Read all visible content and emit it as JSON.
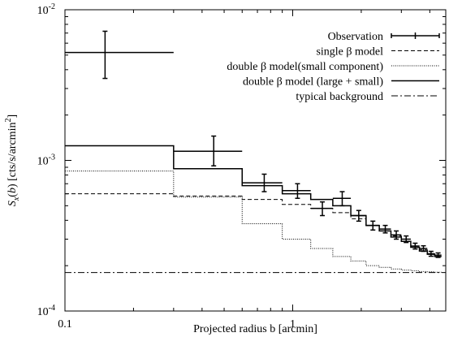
{
  "chart_data": {
    "type": "line",
    "title": "",
    "xlabel": "Projected radius b [arcmin]",
    "ylabel": "S_x(b) [cts/s/arcmin^2]",
    "xscale": "log",
    "yscale": "log",
    "xlim": [
      0.1,
      4.7
    ],
    "ylim": [
      0.0001,
      0.01
    ],
    "grid": false,
    "legend_position": "top-right",
    "x_tick_labels": [
      {
        "value": 0.1,
        "label": "0.1"
      },
      {
        "value": 1,
        "label": "1"
      }
    ],
    "y_tick_labels": [
      {
        "value": 0.0001,
        "label": "10",
        "exp": "-4"
      },
      {
        "value": 0.001,
        "label": "10",
        "exp": "-3"
      },
      {
        "value": 0.01,
        "label": "10",
        "exp": "-2"
      }
    ],
    "series": [
      {
        "name": "Observation",
        "kind": "errorbar",
        "points": [
          {
            "x": 0.15,
            "x_lo": 0.0,
            "x_hi": 0.3,
            "y": 0.0052,
            "y_lo": 0.0035,
            "y_hi": 0.0072
          },
          {
            "x": 0.45,
            "x_lo": 0.3,
            "x_hi": 0.6,
            "y": 0.00115,
            "y_lo": 0.00092,
            "y_hi": 0.00145
          },
          {
            "x": 0.75,
            "x_lo": 0.6,
            "x_hi": 0.9,
            "y": 0.00071,
            "y_lo": 0.00062,
            "y_hi": 0.00081
          },
          {
            "x": 1.05,
            "x_lo": 0.9,
            "x_hi": 1.2,
            "y": 0.00063,
            "y_lo": 0.00056,
            "y_hi": 0.0007
          },
          {
            "x": 1.35,
            "x_lo": 1.2,
            "x_hi": 1.5,
            "y": 0.00048,
            "y_lo": 0.00043,
            "y_hi": 0.00053
          },
          {
            "x": 1.65,
            "x_lo": 1.5,
            "x_hi": 1.8,
            "y": 0.00056,
            "y_lo": 0.0005,
            "y_hi": 0.00062
          },
          {
            "x": 1.95,
            "x_lo": 1.8,
            "x_hi": 2.1,
            "y": 0.00043,
            "y_lo": 0.000395,
            "y_hi": 0.000465
          },
          {
            "x": 2.25,
            "x_lo": 2.1,
            "x_hi": 2.4,
            "y": 0.00037,
            "y_lo": 0.000345,
            "y_hi": 0.000395
          },
          {
            "x": 2.55,
            "x_lo": 2.4,
            "x_hi": 2.7,
            "y": 0.00035,
            "y_lo": 0.00033,
            "y_hi": 0.00037
          },
          {
            "x": 2.85,
            "x_lo": 2.7,
            "x_hi": 3.0,
            "y": 0.00032,
            "y_lo": 0.0003,
            "y_hi": 0.00034
          },
          {
            "x": 3.15,
            "x_lo": 3.0,
            "x_hi": 3.3,
            "y": 0.0003,
            "y_lo": 0.000285,
            "y_hi": 0.000315
          },
          {
            "x": 3.45,
            "x_lo": 3.3,
            "x_hi": 3.6,
            "y": 0.00027,
            "y_lo": 0.000258,
            "y_hi": 0.000282
          },
          {
            "x": 3.75,
            "x_lo": 3.6,
            "x_hi": 3.9,
            "y": 0.00026,
            "y_lo": 0.000249,
            "y_hi": 0.000271
          },
          {
            "x": 4.05,
            "x_lo": 3.9,
            "x_hi": 4.2,
            "y": 0.00024,
            "y_lo": 0.000231,
            "y_hi": 0.000249
          },
          {
            "x": 4.35,
            "x_lo": 4.2,
            "x_hi": 4.5,
            "y": 0.000235,
            "y_lo": 0.000227,
            "y_hi": 0.000243
          }
        ]
      },
      {
        "name": "single β model",
        "kind": "step",
        "dash": "5,3",
        "edges": [
          0.1,
          0.3,
          0.6,
          0.9,
          1.2,
          1.5,
          1.8,
          2.1,
          2.4,
          2.7,
          3.0,
          3.3,
          3.6,
          3.9,
          4.2,
          4.5
        ],
        "values": [
          0.0006,
          0.00058,
          0.00055,
          0.00051,
          0.00048,
          0.00045,
          0.00041,
          0.00037,
          0.00034,
          0.000315,
          0.00029,
          0.00027,
          0.000255,
          0.00024,
          0.00023
        ]
      },
      {
        "name": "double β model(small component)",
        "kind": "step",
        "dash": "1,1.5",
        "edges": [
          0.1,
          0.3,
          0.6,
          0.9,
          1.2,
          1.5,
          1.8,
          2.1,
          2.4,
          2.7,
          3.0,
          3.3,
          3.6,
          3.9,
          4.2,
          4.5
        ],
        "values": [
          0.00085,
          0.00057,
          0.00038,
          0.0003,
          0.00026,
          0.00023,
          0.000215,
          0.0002,
          0.000195,
          0.00019,
          0.000187,
          0.000185,
          0.000183,
          0.000182,
          0.000181
        ]
      },
      {
        "name": "double β model (large + small)",
        "kind": "step",
        "dash": "",
        "edges": [
          0.1,
          0.3,
          0.6,
          0.9,
          1.2,
          1.5,
          1.8,
          2.1,
          2.4,
          2.7,
          3.0,
          3.3,
          3.6,
          3.9,
          4.2,
          4.5
        ],
        "values": [
          0.00125,
          0.00088,
          0.00068,
          0.0006,
          0.00055,
          0.0005,
          0.00043,
          0.00037,
          0.00034,
          0.00031,
          0.00029,
          0.000265,
          0.00025,
          0.000238,
          0.00023
        ]
      },
      {
        "name": "typical background",
        "kind": "line",
        "dash": "8,3,2,3",
        "x": [
          0.1,
          4.7
        ],
        "y": [
          0.00018,
          0.00018
        ]
      }
    ]
  }
}
